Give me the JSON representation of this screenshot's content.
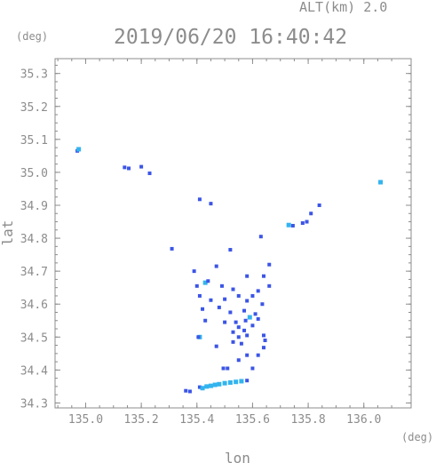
{
  "chart_data": {
    "type": "scatter",
    "title": "2019/06/20 16:40:42",
    "altitude_label": "ALT(km) 2.0",
    "xlabel": "lon",
    "ylabel": "lat",
    "x_unit": "(deg)",
    "y_unit": "(deg)",
    "xlim": [
      134.89,
      136.17
    ],
    "ylim": [
      34.285,
      35.345
    ],
    "xticks": [
      135.0,
      135.2,
      135.4,
      135.6,
      135.8,
      136.0
    ],
    "xtick_labels": [
      "135.0",
      "135.2",
      "135.4",
      "135.6",
      "135.8",
      "136.0"
    ],
    "yticks": [
      34.3,
      34.4,
      34.5,
      34.6,
      34.7,
      34.8,
      34.9,
      35.0,
      35.1,
      35.2,
      35.3
    ],
    "ytick_labels": [
      "34.3",
      "34.4",
      "34.5",
      "34.6",
      "34.7",
      "34.8",
      "34.9",
      "35.0",
      "35.1",
      "35.2",
      "35.3"
    ],
    "grid": false,
    "colors": {
      "weak": "#3b55e6",
      "moderate": "#33b4ee",
      "axis": "#8c8c8c"
    },
    "echoes": [
      {
        "lon": 134.97,
        "lat": 35.065,
        "level": "weak"
      },
      {
        "lon": 134.975,
        "lat": 35.07,
        "level": "moderate"
      },
      {
        "lon": 135.14,
        "lat": 35.015,
        "level": "weak"
      },
      {
        "lon": 135.155,
        "lat": 35.012,
        "level": "weak"
      },
      {
        "lon": 135.2,
        "lat": 35.017,
        "level": "weak"
      },
      {
        "lon": 135.23,
        "lat": 34.997,
        "level": "weak"
      },
      {
        "lon": 136.06,
        "lat": 34.97,
        "level": "moderate"
      },
      {
        "lon": 135.41,
        "lat": 34.918,
        "level": "weak"
      },
      {
        "lon": 135.45,
        "lat": 34.905,
        "level": "weak"
      },
      {
        "lon": 135.84,
        "lat": 34.9,
        "level": "weak"
      },
      {
        "lon": 135.81,
        "lat": 34.875,
        "level": "weak"
      },
      {
        "lon": 135.73,
        "lat": 34.84,
        "level": "moderate"
      },
      {
        "lon": 135.745,
        "lat": 34.838,
        "level": "weak"
      },
      {
        "lon": 135.78,
        "lat": 34.846,
        "level": "weak"
      },
      {
        "lon": 135.795,
        "lat": 34.85,
        "level": "weak"
      },
      {
        "lon": 135.63,
        "lat": 34.805,
        "level": "weak"
      },
      {
        "lon": 135.31,
        "lat": 34.768,
        "level": "weak"
      },
      {
        "lon": 135.52,
        "lat": 34.765,
        "level": "weak"
      },
      {
        "lon": 135.47,
        "lat": 34.715,
        "level": "weak"
      },
      {
        "lon": 135.39,
        "lat": 34.7,
        "level": "weak"
      },
      {
        "lon": 135.66,
        "lat": 34.72,
        "level": "weak"
      },
      {
        "lon": 135.58,
        "lat": 34.685,
        "level": "weak"
      },
      {
        "lon": 135.64,
        "lat": 34.685,
        "level": "weak"
      },
      {
        "lon": 135.43,
        "lat": 34.665,
        "level": "moderate"
      },
      {
        "lon": 135.44,
        "lat": 34.67,
        "level": "weak"
      },
      {
        "lon": 135.4,
        "lat": 34.655,
        "level": "weak"
      },
      {
        "lon": 135.49,
        "lat": 34.655,
        "level": "weak"
      },
      {
        "lon": 135.53,
        "lat": 34.645,
        "level": "weak"
      },
      {
        "lon": 135.62,
        "lat": 34.64,
        "level": "weak"
      },
      {
        "lon": 135.66,
        "lat": 34.655,
        "level": "weak"
      },
      {
        "lon": 135.41,
        "lat": 34.625,
        "level": "weak"
      },
      {
        "lon": 135.45,
        "lat": 34.612,
        "level": "weak"
      },
      {
        "lon": 135.5,
        "lat": 34.615,
        "level": "weak"
      },
      {
        "lon": 135.55,
        "lat": 34.625,
        "level": "weak"
      },
      {
        "lon": 135.58,
        "lat": 34.61,
        "level": "weak"
      },
      {
        "lon": 135.6,
        "lat": 34.625,
        "level": "weak"
      },
      {
        "lon": 135.635,
        "lat": 34.6,
        "level": "weak"
      },
      {
        "lon": 135.42,
        "lat": 34.585,
        "level": "weak"
      },
      {
        "lon": 135.48,
        "lat": 34.59,
        "level": "weak"
      },
      {
        "lon": 135.52,
        "lat": 34.575,
        "level": "weak"
      },
      {
        "lon": 135.57,
        "lat": 34.58,
        "level": "weak"
      },
      {
        "lon": 135.59,
        "lat": 34.56,
        "level": "moderate"
      },
      {
        "lon": 135.61,
        "lat": 34.57,
        "level": "weak"
      },
      {
        "lon": 135.62,
        "lat": 34.555,
        "level": "weak"
      },
      {
        "lon": 135.43,
        "lat": 34.55,
        "level": "weak"
      },
      {
        "lon": 135.5,
        "lat": 34.545,
        "level": "weak"
      },
      {
        "lon": 135.54,
        "lat": 34.545,
        "level": "weak"
      },
      {
        "lon": 135.575,
        "lat": 34.55,
        "level": "weak"
      },
      {
        "lon": 135.6,
        "lat": 34.535,
        "level": "weak"
      },
      {
        "lon": 135.55,
        "lat": 34.53,
        "level": "weak"
      },
      {
        "lon": 135.53,
        "lat": 34.515,
        "level": "weak"
      },
      {
        "lon": 135.57,
        "lat": 34.52,
        "level": "weak"
      },
      {
        "lon": 135.55,
        "lat": 34.5,
        "level": "weak"
      },
      {
        "lon": 135.58,
        "lat": 34.505,
        "level": "weak"
      },
      {
        "lon": 135.64,
        "lat": 34.505,
        "level": "weak"
      },
      {
        "lon": 135.645,
        "lat": 34.49,
        "level": "weak"
      },
      {
        "lon": 135.41,
        "lat": 34.5,
        "level": "moderate"
      },
      {
        "lon": 135.405,
        "lat": 34.5,
        "level": "weak"
      },
      {
        "lon": 135.53,
        "lat": 34.485,
        "level": "weak"
      },
      {
        "lon": 135.56,
        "lat": 34.48,
        "level": "weak"
      },
      {
        "lon": 135.47,
        "lat": 34.472,
        "level": "weak"
      },
      {
        "lon": 135.64,
        "lat": 34.468,
        "level": "weak"
      },
      {
        "lon": 135.58,
        "lat": 34.445,
        "level": "weak"
      },
      {
        "lon": 135.62,
        "lat": 34.445,
        "level": "weak"
      },
      {
        "lon": 135.55,
        "lat": 34.43,
        "level": "weak"
      },
      {
        "lon": 135.495,
        "lat": 34.405,
        "level": "weak"
      },
      {
        "lon": 135.51,
        "lat": 34.405,
        "level": "weak"
      },
      {
        "lon": 135.6,
        "lat": 34.405,
        "level": "weak"
      },
      {
        "lon": 135.36,
        "lat": 34.337,
        "level": "weak"
      },
      {
        "lon": 135.375,
        "lat": 34.335,
        "level": "weak"
      },
      {
        "lon": 135.41,
        "lat": 34.348,
        "level": "weak"
      },
      {
        "lon": 135.42,
        "lat": 34.345,
        "level": "moderate"
      },
      {
        "lon": 135.435,
        "lat": 34.35,
        "level": "moderate"
      },
      {
        "lon": 135.45,
        "lat": 34.352,
        "level": "moderate"
      },
      {
        "lon": 135.465,
        "lat": 34.355,
        "level": "moderate"
      },
      {
        "lon": 135.48,
        "lat": 34.357,
        "level": "moderate"
      },
      {
        "lon": 135.5,
        "lat": 34.36,
        "level": "moderate"
      },
      {
        "lon": 135.52,
        "lat": 34.362,
        "level": "moderate"
      },
      {
        "lon": 135.54,
        "lat": 34.364,
        "level": "moderate"
      },
      {
        "lon": 135.56,
        "lat": 34.366,
        "level": "moderate"
      },
      {
        "lon": 135.58,
        "lat": 34.368,
        "level": "weak"
      }
    ]
  }
}
